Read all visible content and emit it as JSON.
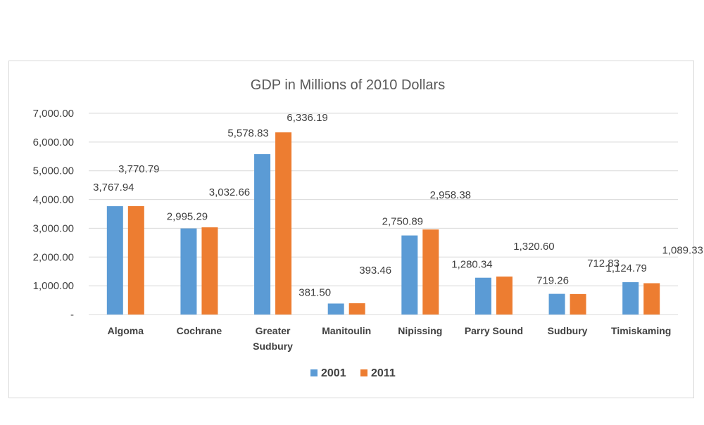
{
  "chart_data": {
    "type": "bar",
    "title": "GDP in Millions of 2010 Dollars",
    "xlabel": "",
    "ylabel": "",
    "ylim": [
      0,
      7000
    ],
    "yticks": [
      0,
      1000,
      2000,
      3000,
      4000,
      5000,
      6000,
      7000
    ],
    "ytick_labels": [
      "-",
      "1,000.00",
      "2,000.00",
      "3,000.00",
      "4,000.00",
      "5,000.00",
      "6,000.00",
      "7,000.00"
    ],
    "grid": true,
    "legend_position": "bottom",
    "categories": [
      [
        "Algoma"
      ],
      [
        "Cochrane"
      ],
      [
        "Greater",
        "Sudbury"
      ],
      [
        "Manitoulin"
      ],
      [
        "Nipissing"
      ],
      [
        "Parry Sound"
      ],
      [
        "Sudbury"
      ],
      [
        "Timiskaming"
      ]
    ],
    "series": [
      {
        "name": "2001",
        "color": "#5b9bd5",
        "values": [
          3767.94,
          2995.29,
          5578.83,
          381.5,
          2750.89,
          1280.34,
          719.26,
          1124.79
        ],
        "labels": [
          "3,767.94",
          "2,995.29",
          "5,578.83",
          "381.50",
          "2,750.89",
          "1,280.34",
          "719.26",
          "1,124.79"
        ]
      },
      {
        "name": "2011",
        "color": "#ed7d31",
        "values": [
          3770.79,
          3032.66,
          6336.19,
          393.46,
          2958.38,
          1320.6,
          712.83,
          1089.33
        ],
        "labels": [
          "3,770.79",
          "3,032.66",
          "6,336.19",
          "393.46",
          "2,958.38",
          "1,320.60",
          "712.83",
          "1,089.33"
        ]
      }
    ]
  }
}
